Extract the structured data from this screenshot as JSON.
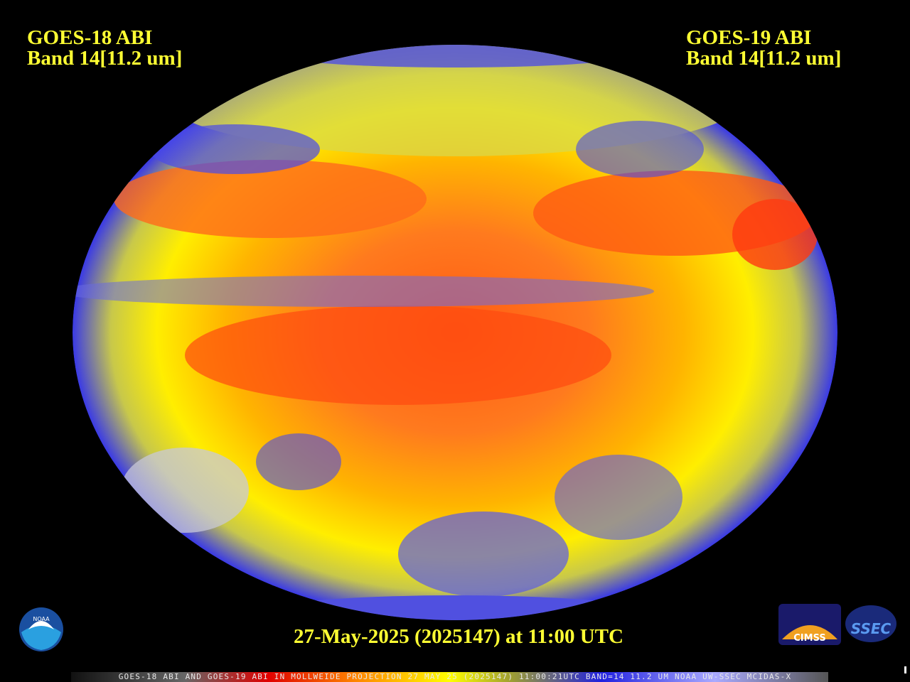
{
  "header": {
    "left": {
      "line1": "GOES-18 ABI",
      "line2": "Band 14[11.2 um]"
    },
    "right": {
      "line1": "GOES-19 ABI",
      "line2": "Band 14[11.2 um]"
    }
  },
  "footer": {
    "date": "27-May-2025 (2025147) at 11:00 UTC",
    "caption": "GOES-18 ABI AND GOES-19 ABI IN MOLLWEIDE PROJECTION 27 MAY 25 (2025147) 11:00:21UTC BAND=14 11.2 UM NOAA UW-SSEC MCIDAS-X"
  },
  "logos": {
    "noaa": "NOAA",
    "cimss": "CIMSS",
    "ssec": "SSEC"
  }
}
